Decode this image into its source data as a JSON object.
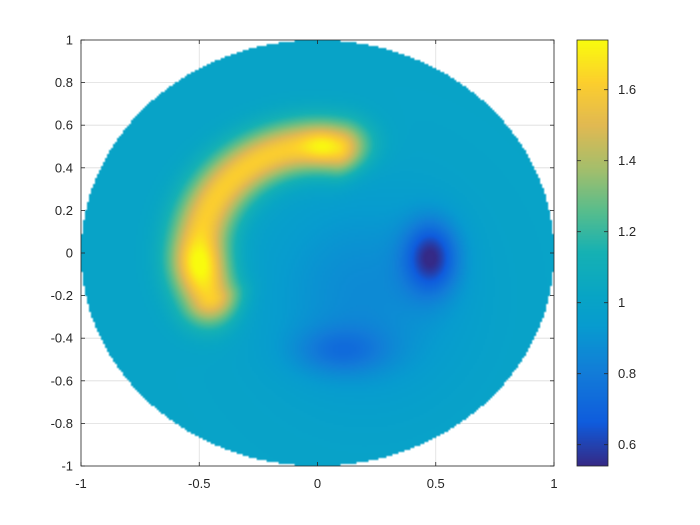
{
  "chart_data": {
    "type": "heatmap",
    "title": "",
    "xlabel": "",
    "ylabel": "",
    "xlim": [
      -1,
      1
    ],
    "ylim": [
      -1,
      1
    ],
    "domain": "unit-disk",
    "grid": true,
    "colormap": "parula",
    "clim": [
      0.54,
      1.74
    ],
    "x_ticks": [
      -1,
      -0.5,
      0,
      0.5,
      1
    ],
    "y_ticks": [
      -1,
      -0.8,
      -0.6,
      -0.4,
      -0.2,
      0,
      0.2,
      0.4,
      0.6,
      0.8,
      1
    ],
    "x_tick_labels": [
      "-1",
      "-0.5",
      "0",
      "0.5",
      "1"
    ],
    "y_tick_labels": [
      "-1",
      "-0.8",
      "-0.6",
      "-0.4",
      "-0.2",
      "0",
      "0.2",
      "0.4",
      "0.6",
      "0.8",
      "1"
    ],
    "colorbar_ticks": [
      0.6,
      0.8,
      1,
      1.2,
      1.4,
      1.6
    ],
    "colorbar_tick_labels": [
      "0.6",
      "0.8",
      "1",
      "1.2",
      "1.4",
      "1.6"
    ],
    "background_value": 1.0,
    "features": [
      {
        "kind": "high-arc",
        "center": [
          0,
          0
        ],
        "radius": 0.5,
        "angle_from_deg": 80,
        "angle_to_deg": 205,
        "width": 0.09,
        "amplitude": 0.62
      },
      {
        "kind": "high-spot",
        "center": [
          -0.5,
          -0.05
        ],
        "sigma": 0.08,
        "amplitude": 0.15
      },
      {
        "kind": "high-spot",
        "center": [
          0.02,
          0.5
        ],
        "sigma": 0.06,
        "amplitude": 0.12
      },
      {
        "kind": "low-spot",
        "center": [
          0.48,
          -0.02
        ],
        "sigma_x": 0.08,
        "sigma_y": 0.12,
        "amplitude": -0.4
      },
      {
        "kind": "low-spot",
        "center": [
          0.1,
          -0.46
        ],
        "sigma_x": 0.14,
        "sigma_y": 0.08,
        "amplitude": -0.18
      },
      {
        "kind": "low-region",
        "center": [
          0.2,
          -0.2
        ],
        "sigma_x": 0.28,
        "sigma_y": 0.32,
        "amplitude": -0.14
      }
    ]
  }
}
